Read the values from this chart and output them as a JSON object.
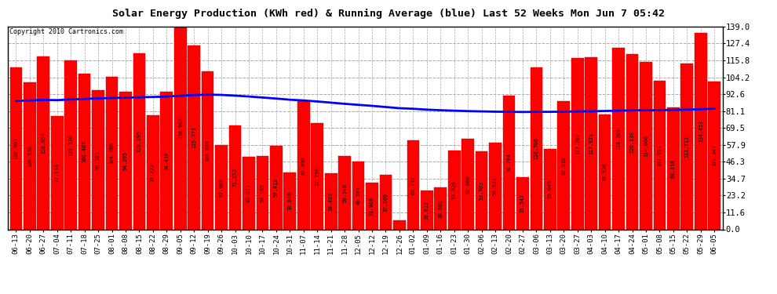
{
  "title": "Solar Energy Production (KWh red) & Running Average (blue) Last 52 Weeks Mon Jun 7 05:42",
  "copyright": "Copyright 2010 Cartronics.com",
  "bar_color": "#FF0000",
  "avg_line_color": "#0000FF",
  "ylim": [
    0,
    139.0
  ],
  "yticks": [
    0.0,
    11.6,
    23.2,
    34.7,
    46.3,
    57.9,
    69.5,
    81.1,
    92.6,
    104.2,
    115.8,
    127.4,
    139.0
  ],
  "categories": [
    "06-13",
    "06-20",
    "06-27",
    "07-04",
    "07-11",
    "07-18",
    "07-25",
    "08-01",
    "08-08",
    "08-15",
    "08-22",
    "08-29",
    "09-05",
    "09-12",
    "09-19",
    "09-26",
    "10-03",
    "10-10",
    "10-17",
    "10-24",
    "10-31",
    "11-07",
    "11-14",
    "11-21",
    "11-28",
    "12-05",
    "12-12",
    "12-19",
    "12-26",
    "01-02",
    "01-09",
    "01-16",
    "01-23",
    "01-30",
    "02-06",
    "02-13",
    "02-20",
    "02-27",
    "03-06",
    "03-13",
    "03-20",
    "03-27",
    "04-03",
    "04-10",
    "04-17",
    "04-24",
    "05-01",
    "05-08",
    "05-15",
    "05-22",
    "05-29",
    "06-05"
  ],
  "values": [
    110.903,
    100.53,
    118.654,
    77.538,
    115.51,
    106.407,
    95.361,
    104.266,
    94.205,
    120.395,
    78.222,
    94.416,
    138.963,
    125.771,
    108.08,
    57.985,
    71.253,
    49.811,
    50.165,
    57.412,
    38.846,
    87.89,
    72.758,
    38.493,
    50.34,
    46.501,
    31.969,
    37.269,
    6.079,
    60.732,
    26.813,
    28.602,
    53.926,
    62.08,
    53.703,
    59.522,
    91.764,
    35.542,
    110.706,
    55.049,
    87.91,
    117.202,
    117.921,
    78.526,
    124.205,
    120.139,
    114.6,
    101.551,
    83.318,
    113.712,
    134.453,
    101.347
  ],
  "running_avg": [
    88.0,
    88.3,
    88.7,
    88.5,
    89.0,
    89.4,
    89.7,
    90.0,
    90.2,
    90.5,
    90.7,
    91.0,
    91.5,
    92.0,
    92.3,
    92.1,
    91.6,
    91.0,
    90.3,
    89.6,
    88.8,
    88.3,
    87.6,
    86.8,
    86.0,
    85.3,
    84.6,
    83.8,
    83.0,
    82.6,
    82.0,
    81.6,
    81.3,
    81.0,
    80.8,
    80.6,
    80.5,
    80.4,
    80.5,
    80.5,
    80.6,
    80.8,
    80.9,
    81.1,
    81.3,
    81.5,
    81.6,
    81.7,
    81.8,
    82.0,
    82.3,
    82.7
  ]
}
